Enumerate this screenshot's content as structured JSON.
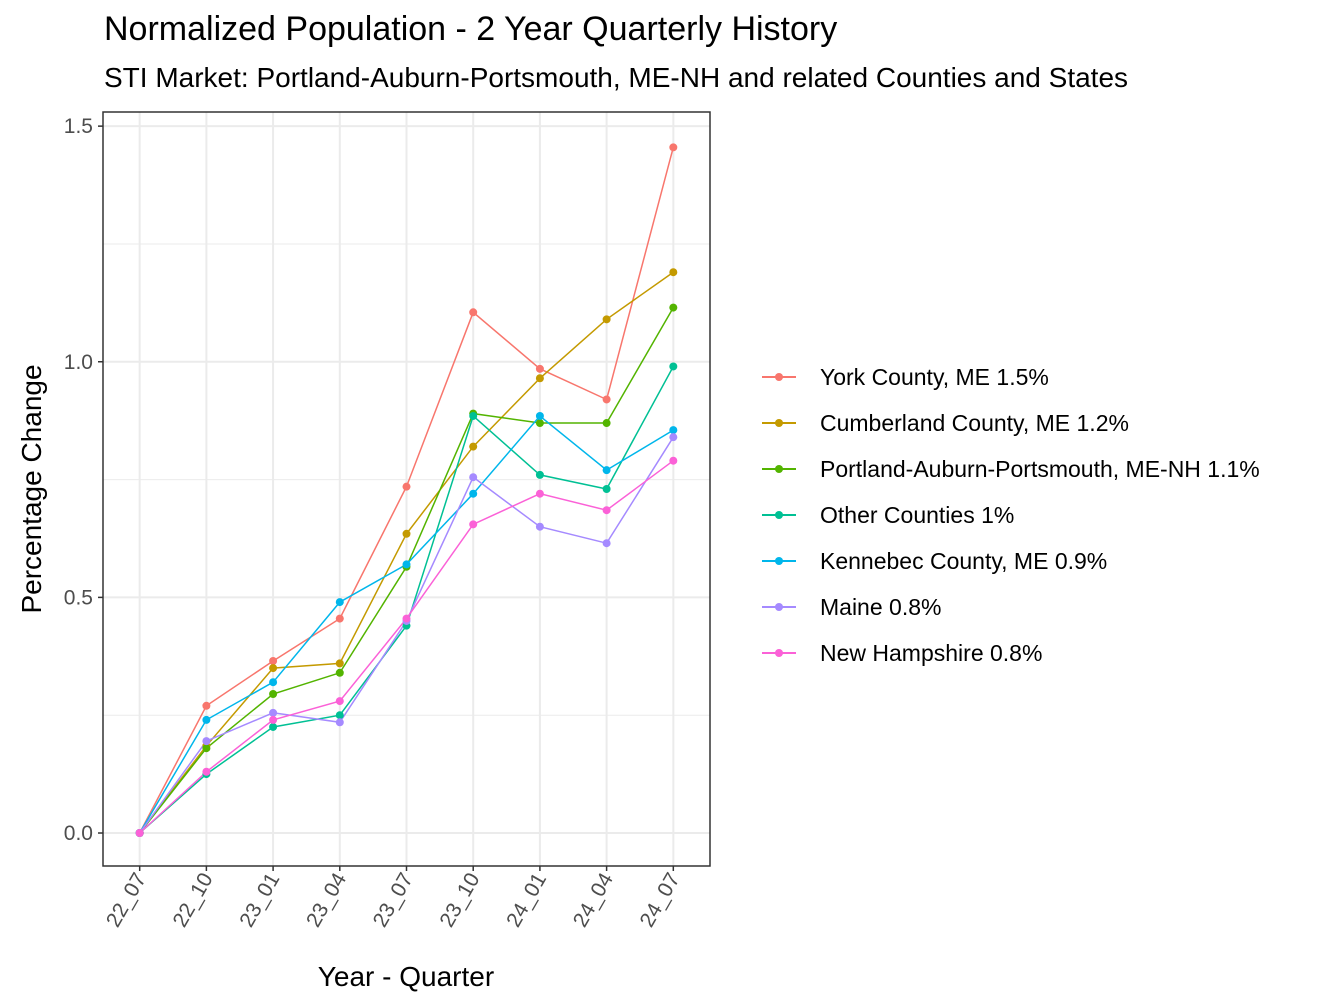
{
  "chart_data": {
    "type": "line",
    "title": "Normalized Population - 2 Year Quarterly History",
    "subtitle": "STI Market: Portland-Auburn-Portsmouth, ME-NH and related Counties and States",
    "xlabel": "Year - Quarter",
    "ylabel": "Percentage Change",
    "categories": [
      "22_07",
      "22_10",
      "23_01",
      "23_04",
      "23_07",
      "23_10",
      "24_01",
      "24_04",
      "24_07"
    ],
    "ylim": [
      -0.07,
      1.53
    ],
    "yticks": [
      0.0,
      0.5,
      1.0,
      1.5
    ],
    "ytick_labels": [
      "0.0",
      "0.5",
      "1.0",
      "1.5"
    ],
    "grid": true,
    "legend_position": "right",
    "series": [
      {
        "name": "York County, ME 1.5%",
        "color": "#F8766D",
        "values": [
          0.0,
          0.27,
          0.365,
          0.455,
          0.735,
          1.105,
          0.985,
          0.92,
          1.455
        ]
      },
      {
        "name": "Cumberland County, ME 1.2%",
        "color": "#C49A00",
        "values": [
          0.0,
          0.185,
          0.35,
          0.36,
          0.635,
          0.82,
          0.965,
          1.09,
          1.19
        ]
      },
      {
        "name": "Portland-Auburn-Portsmouth, ME-NH 1.1%",
        "color": "#53B400",
        "values": [
          0.0,
          0.18,
          0.295,
          0.34,
          0.565,
          0.89,
          0.87,
          0.87,
          1.115
        ]
      },
      {
        "name": "Other Counties 1%",
        "color": "#00C094",
        "values": [
          0.0,
          0.125,
          0.225,
          0.25,
          0.44,
          0.885,
          0.76,
          0.73,
          0.99
        ]
      },
      {
        "name": "Kennebec County, ME 0.9%",
        "color": "#00B6EB",
        "values": [
          0.0,
          0.24,
          0.32,
          0.49,
          0.57,
          0.72,
          0.885,
          0.77,
          0.855
        ]
      },
      {
        "name": "Maine 0.8%",
        "color": "#A58AFF",
        "values": [
          0.0,
          0.195,
          0.255,
          0.235,
          0.45,
          0.755,
          0.65,
          0.615,
          0.84
        ]
      },
      {
        "name": "New Hampshire 0.8%",
        "color": "#FB61D7",
        "values": [
          0.0,
          0.13,
          0.24,
          0.28,
          0.455,
          0.655,
          0.72,
          0.685,
          0.79
        ]
      }
    ]
  }
}
